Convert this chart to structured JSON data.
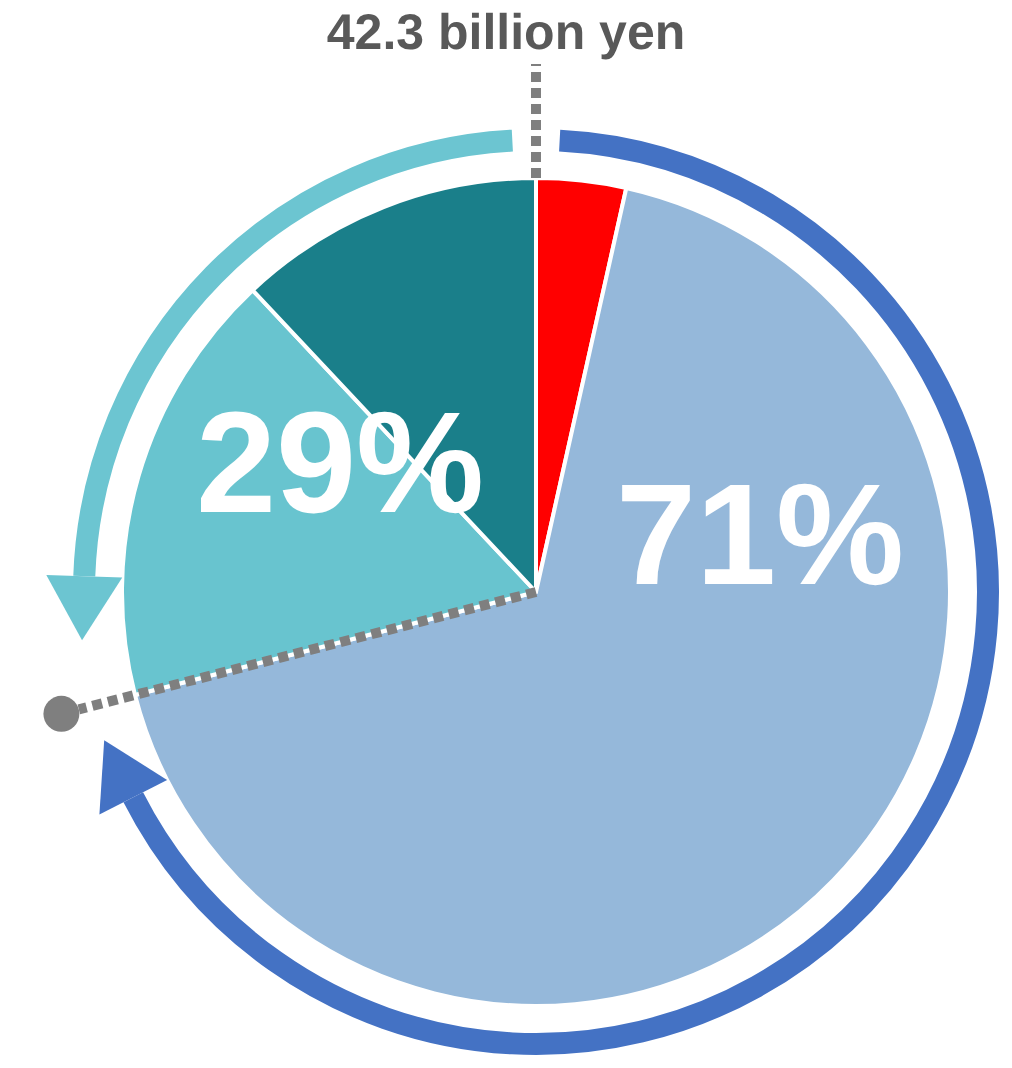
{
  "chart_data": {
    "type": "pie",
    "title": "42.3 billion yen",
    "categories": [
      null,
      null,
      null,
      null
    ],
    "values": [
      3.5,
      67.5,
      17,
      12
    ],
    "colors": [
      "#ff0000",
      "#95b8da",
      "#68c4cf",
      "#1a7f8a"
    ],
    "annotations": [
      "29%",
      "71%"
    ]
  }
}
